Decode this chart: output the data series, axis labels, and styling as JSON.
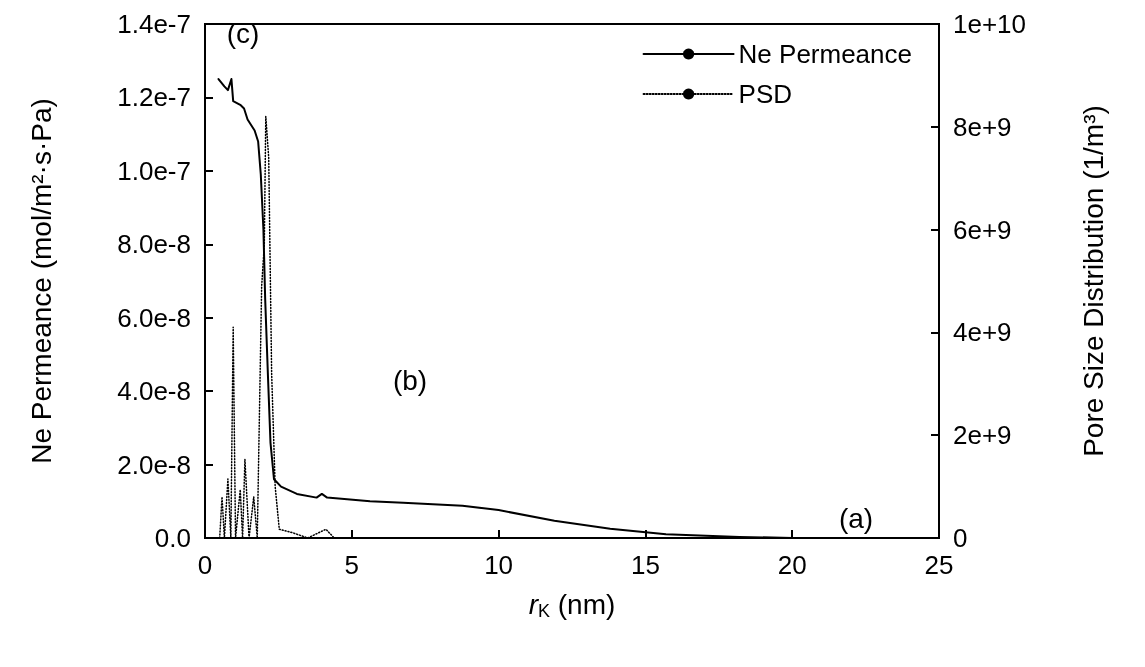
{
  "chart_data": {
    "type": "line",
    "xlabel": "r$_{K}$ (nm)",
    "ylabel": "Ne Permeance (mol/m²·s·Pa)",
    "y2label": "Pore Size Distribution (1/m³)",
    "xlim": [
      0,
      25
    ],
    "xticks": [
      0,
      5,
      10,
      15,
      20,
      25
    ],
    "ylim": [
      0,
      1.4e-07
    ],
    "yticks": [
      {
        "value": 0,
        "label": "0.0"
      },
      {
        "value": 2e-08,
        "label": "2.0e-8"
      },
      {
        "value": 4e-08,
        "label": "4.0e-8"
      },
      {
        "value": 6e-08,
        "label": "6.0e-8"
      },
      {
        "value": 8e-08,
        "label": "8.0e-8"
      },
      {
        "value": 1e-07,
        "label": "1.0e-7"
      },
      {
        "value": 1.2e-07,
        "label": "1.2e-7"
      },
      {
        "value": 1.4e-07,
        "label": "1.4e-7"
      }
    ],
    "y2lim": [
      0,
      10000000000.0
    ],
    "y2ticks": [
      0,
      {
        "value": 2000000000.0,
        "label": "2e+9"
      },
      {
        "value": 4000000000.0,
        "label": "4e+9"
      },
      {
        "value": 6000000000.0,
        "label": "6e+9"
      },
      {
        "value": 8000000000.0,
        "label": "8e+9"
      },
      {
        "value": 10000000000.0,
        "label": "1e+10"
      }
    ],
    "grid": false,
    "legend": "top right",
    "marker": "none",
    "series": [
      {
        "name": "Ne Permeance",
        "color": "#000000",
        "line_style": "solid",
        "x": [
          0.46,
          0.66,
          0.78,
          0.9,
          0.96,
          1.2,
          1.33,
          1.45,
          1.69,
          1.81,
          1.9,
          1.99,
          2.05,
          2.14,
          2.23,
          2.35,
          2.59,
          3.13,
          3.8,
          3.98,
          4.16,
          5.62,
          6.75,
          8.77,
          10.0,
          11.9,
          13.8,
          15.7,
          18.2,
          20,
          25
        ],
        "values": [
          1.25e-07,
          1.23e-07,
          1.22e-07,
          1.25e-07,
          1.19e-07,
          1.18e-07,
          1.17e-07,
          1.14e-07,
          1.11e-07,
          1.08e-07,
          9.9e-08,
          8.4e-08,
          6.5e-08,
          4.5e-08,
          2.6e-08,
          1.6e-08,
          1.4e-08,
          1.2e-08,
          1.1e-08,
          1.2e-08,
          1.1e-08,
          1e-08,
          9.6e-09,
          8.8e-09,
          7.6e-09,
          4.7e-09,
          2.5e-09,
          1e-09,
          3e-10,
          0,
          0
        ]
      },
      {
        "name": "PSD",
        "color": "#000000",
        "line_style": "dotted",
        "axis": "y2",
        "x": [
          0.5,
          0.58,
          0.66,
          0.78,
          0.88,
          0.96,
          1.04,
          1.2,
          1.28,
          1.36,
          1.5,
          1.66,
          1.78,
          1.93,
          2.02,
          2.07,
          2.17,
          2.27,
          2.39,
          2.53,
          3.0,
          3.5,
          4.12,
          4.4,
          25
        ],
        "values": [
          0,
          800000000.0,
          0,
          1150000000.0,
          0,
          4100000000.0,
          0,
          940000000.0,
          0,
          1530000000.0,
          0,
          800000000.0,
          0,
          4900000000.0,
          5700000000.0,
          8200000000.0,
          7400000000.0,
          3200000000.0,
          1000000000.0,
          170000000.0,
          100000000.0,
          0,
          170000000.0,
          0,
          0
        ]
      }
    ],
    "annotations": [
      "(c)",
      "(b)",
      "(a)"
    ]
  }
}
